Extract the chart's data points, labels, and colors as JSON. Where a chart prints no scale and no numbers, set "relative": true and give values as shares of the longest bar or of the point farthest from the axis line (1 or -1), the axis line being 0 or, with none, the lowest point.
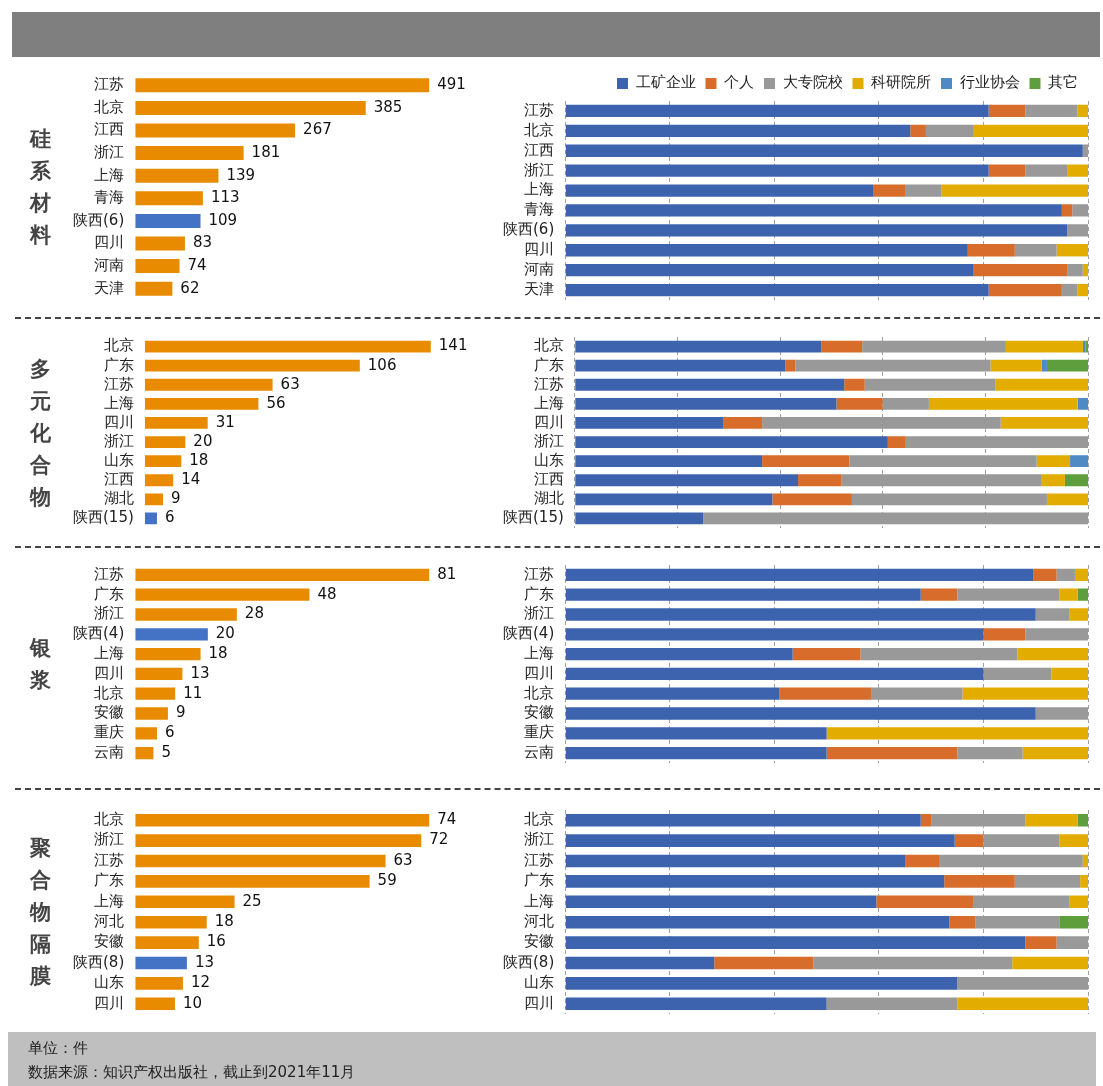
{
  "chart_data": [
    {
      "type": "bar",
      "title": "硅系材料",
      "orientation": "horizontal",
      "tick_labels": "y",
      "data_labels": true,
      "categories": [
        "江苏",
        "北京",
        "江西",
        "浙江",
        "上海",
        "青海",
        "陕西(6)",
        "四川",
        "河南",
        "天津"
      ],
      "values": [
        491,
        385,
        267,
        181,
        139,
        113,
        109,
        83,
        74,
        62
      ],
      "colors": [
        "#e98b00",
        "#e98b00",
        "#e98b00",
        "#e98b00",
        "#e98b00",
        "#e98b00",
        "#4472c4",
        "#e98b00",
        "#e98b00",
        "#e98b00"
      ]
    },
    {
      "type": "bar",
      "orientation": "horizontal",
      "stacked": true,
      "relative": true,
      "grid": "x",
      "tick_labels": "y",
      "legend": "top",
      "categories": [
        "江苏",
        "北京",
        "江西",
        "浙江",
        "上海",
        "青海",
        "陕西(6)",
        "四川",
        "河南",
        "天津"
      ],
      "series": [
        {
          "name": "工矿企业",
          "color": "#3d63ae",
          "values": [
            0.81,
            0.66,
            0.99,
            0.81,
            0.59,
            0.95,
            0.96,
            0.77,
            0.78,
            0.81
          ]
        },
        {
          "name": "个人",
          "color": "#d86d2b",
          "values": [
            0.07,
            0.03,
            null,
            0.07,
            0.06,
            0.02,
            null,
            0.09,
            0.18,
            0.14
          ]
        },
        {
          "name": "大专院校",
          "color": "#999999",
          "values": [
            0.1,
            0.09,
            0.01,
            0.08,
            0.07,
            0.03,
            0.04,
            0.08,
            0.03,
            0.03
          ]
        },
        {
          "name": "科研院所",
          "color": "#e3ac00",
          "values": [
            0.02,
            0.22,
            null,
            0.04,
            0.28,
            null,
            null,
            0.06,
            0.01,
            0.02
          ]
        },
        {
          "name": "行业协会",
          "color": "#4f8ac4",
          "values": [
            null,
            null,
            null,
            null,
            null,
            null,
            null,
            null,
            null,
            null
          ]
        },
        {
          "name": "其它",
          "color": "#5f9e3d",
          "values": [
            null,
            null,
            null,
            null,
            null,
            null,
            null,
            null,
            null,
            null
          ]
        }
      ]
    },
    {
      "type": "bar",
      "title": "多元化合物",
      "orientation": "horizontal",
      "tick_labels": "y",
      "data_labels": true,
      "categories": [
        "北京",
        "广东",
        "江苏",
        "上海",
        "四川",
        "浙江",
        "山东",
        "江西",
        "湖北",
        "陕西(15)"
      ],
      "values": [
        141,
        106,
        63,
        56,
        31,
        20,
        18,
        14,
        9,
        6
      ],
      "colors": [
        "#e98b00",
        "#e98b00",
        "#e98b00",
        "#e98b00",
        "#e98b00",
        "#e98b00",
        "#e98b00",
        "#e98b00",
        "#e98b00",
        "#4472c4"
      ]
    },
    {
      "type": "bar",
      "orientation": "horizontal",
      "stacked": true,
      "relative": true,
      "grid": "x",
      "tick_labels": "y",
      "categories": [
        "北京",
        "广东",
        "江苏",
        "上海",
        "四川",
        "浙江",
        "山东",
        "江西",
        "湖北",
        "陕西(15)"
      ],
      "series": [
        {
          "color": "#3d63ae",
          "values": [
            0.48,
            0.41,
            0.525,
            0.51,
            0.29,
            0.61,
            0.365,
            0.435,
            0.385,
            0.25
          ]
        },
        {
          "color": "#d86d2b",
          "values": [
            0.08,
            0.02,
            0.04,
            0.09,
            0.075,
            0.035,
            0.17,
            0.085,
            0.155,
            null
          ]
        },
        {
          "color": "#999999",
          "values": [
            0.28,
            0.38,
            0.255,
            0.09,
            0.465,
            0.355,
            0.365,
            0.39,
            0.38,
            0.75
          ]
        },
        {
          "color": "#e3ac00",
          "values": [
            0.15,
            0.1,
            0.18,
            0.29,
            0.17,
            null,
            0.065,
            0.045,
            0.08,
            null
          ]
        },
        {
          "color": "#4f8ac4",
          "values": [
            0.005,
            0.01,
            null,
            0.02,
            null,
            null,
            0.035,
            null,
            null,
            null
          ]
        },
        {
          "color": "#5f9e3d",
          "values": [
            0.005,
            0.08,
            null,
            null,
            null,
            null,
            null,
            0.045,
            null,
            null
          ]
        }
      ]
    },
    {
      "type": "bar",
      "title": "银浆",
      "orientation": "horizontal",
      "tick_labels": "y",
      "data_labels": true,
      "categories": [
        "江苏",
        "广东",
        "浙江",
        "陕西(4)",
        "上海",
        "四川",
        "北京",
        "安徽",
        "重庆",
        "云南"
      ],
      "values": [
        81,
        48,
        28,
        20,
        18,
        13,
        11,
        9,
        6,
        5
      ],
      "colors": [
        "#e98b00",
        "#e98b00",
        "#e98b00",
        "#4472c4",
        "#e98b00",
        "#e98b00",
        "#e98b00",
        "#e98b00",
        "#e98b00",
        "#e98b00"
      ]
    },
    {
      "type": "bar",
      "orientation": "horizontal",
      "stacked": true,
      "relative": true,
      "grid": "x",
      "tick_labels": "y",
      "categories": [
        "江苏",
        "广东",
        "浙江",
        "陕西(4)",
        "上海",
        "四川",
        "北京",
        "安徽",
        "重庆",
        "云南"
      ],
      "series": [
        {
          "color": "#3d63ae",
          "values": [
            0.895,
            0.68,
            0.9,
            0.8,
            0.435,
            0.8,
            0.41,
            0.9,
            0.5,
            0.5
          ]
        },
        {
          "color": "#d86d2b",
          "values": [
            0.045,
            0.07,
            null,
            0.08,
            0.13,
            null,
            0.175,
            null,
            null,
            0.25
          ]
        },
        {
          "color": "#999999",
          "values": [
            0.035,
            0.195,
            0.065,
            0.12,
            0.3,
            0.13,
            0.175,
            0.1,
            null,
            0.125
          ]
        },
        {
          "color": "#e3ac00",
          "values": [
            0.025,
            0.035,
            0.035,
            null,
            0.135,
            0.07,
            0.24,
            null,
            0.5,
            0.125
          ]
        },
        {
          "color": "#5f9e3d",
          "values": [
            null,
            0.02,
            null,
            null,
            null,
            null,
            null,
            null,
            null,
            null
          ]
        }
      ]
    },
    {
      "type": "bar",
      "title": "聚合物隔膜",
      "orientation": "horizontal",
      "tick_labels": "y",
      "data_labels": true,
      "categories": [
        "北京",
        "浙江",
        "江苏",
        "广东",
        "上海",
        "河北",
        "安徽",
        "陕西(8)",
        "山东",
        "四川"
      ],
      "values": [
        74,
        72,
        63,
        59,
        25,
        18,
        16,
        13,
        12,
        10
      ],
      "colors": [
        "#e98b00",
        "#e98b00",
        "#e98b00",
        "#e98b00",
        "#e98b00",
        "#e98b00",
        "#e98b00",
        "#4472c4",
        "#e98b00",
        "#e98b00"
      ]
    },
    {
      "type": "bar",
      "orientation": "horizontal",
      "stacked": true,
      "relative": true,
      "grid": "x",
      "tick_labels": "y",
      "categories": [
        "北京",
        "浙江",
        "江苏",
        "广东",
        "上海",
        "河北",
        "安徽",
        "陕西(8)",
        "山东",
        "四川"
      ],
      "annotations": [
        "单位：件",
        "数据来源：知识产权出版社，截止到2021年11月"
      ],
      "series": [
        {
          "color": "#3d63ae",
          "values": [
            0.68,
            0.745,
            0.65,
            0.725,
            0.595,
            0.735,
            0.88,
            0.285,
            0.75,
            0.5
          ]
        },
        {
          "color": "#d86d2b",
          "values": [
            0.02,
            0.055,
            0.065,
            0.135,
            0.185,
            0.05,
            0.06,
            0.19,
            null,
            null
          ]
        },
        {
          "color": "#999999",
          "values": [
            0.18,
            0.145,
            0.275,
            0.125,
            0.185,
            0.16,
            0.06,
            0.38,
            0.25,
            0.25
          ]
        },
        {
          "color": "#e3ac00",
          "values": [
            0.1,
            0.055,
            0.01,
            0.015,
            0.035,
            null,
            null,
            0.145,
            null,
            0.25
          ]
        },
        {
          "color": "#5f9e3d",
          "values": [
            0.02,
            null,
            null,
            null,
            null,
            0.055,
            null,
            null,
            null,
            null
          ]
        }
      ]
    }
  ]
}
